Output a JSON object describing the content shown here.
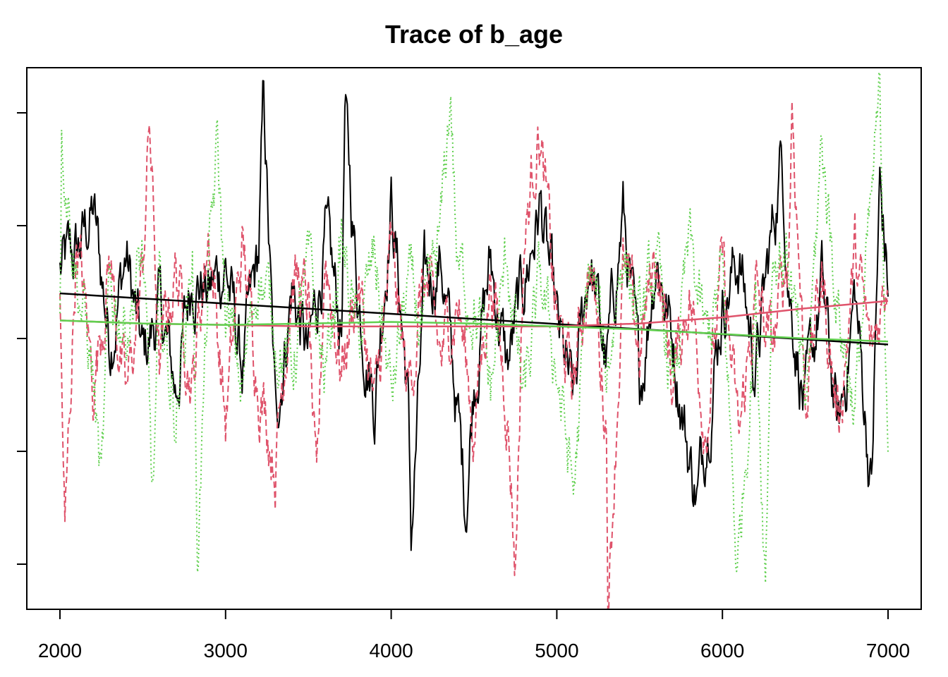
{
  "chart_data": {
    "type": "line",
    "title": "Trace of b_age",
    "xlabel": "",
    "ylabel": "",
    "xlim": [
      2000,
      7000
    ],
    "ylim": [
      -1.8,
      1.8
    ],
    "x_ticks": [
      "2000",
      "3000",
      "4000",
      "5000",
      "6000",
      "7000"
    ],
    "y_ticks": [
      -1.5,
      -0.75,
      0,
      0.75,
      1.5
    ],
    "y_tick_labels_shown": false,
    "grid": false,
    "legend": "none",
    "series": [
      {
        "color": "#000000",
        "linestyle": "solid",
        "x": [
          2000,
          2100,
          2200,
          2300,
          2400,
          2500,
          2600,
          2700,
          2800,
          2900,
          3000,
          3100,
          3200,
          3230,
          3300,
          3400,
          3500,
          3600,
          3700,
          3720,
          3800,
          3900,
          4000,
          4100,
          4120,
          4200,
          4300,
          4400,
          4450,
          4500,
          4600,
          4700,
          4800,
          4900,
          5000,
          5100,
          5200,
          5300,
          5400,
          5500,
          5600,
          5700,
          5800,
          5850,
          5900,
          6000,
          6100,
          6200,
          6300,
          6360,
          6400,
          6500,
          6600,
          6700,
          6800,
          6900,
          6950,
          7000
        ],
        "values": [
          0.45,
          0.55,
          0.85,
          0.0,
          0.55,
          -0.15,
          0.2,
          -0.35,
          0.45,
          0.3,
          0.5,
          -0.2,
          0.55,
          1.6,
          -0.55,
          0.35,
          -0.15,
          0.65,
          0.05,
          1.5,
          0.3,
          -0.4,
          0.95,
          -0.35,
          -1.35,
          0.3,
          0.55,
          -0.5,
          -1.1,
          -0.25,
          0.5,
          -0.2,
          0.35,
          0.9,
          0.05,
          -0.45,
          0.55,
          -0.2,
          0.85,
          -0.35,
          0.6,
          0.0,
          -0.8,
          -1.05,
          -0.6,
          0.25,
          0.55,
          -0.2,
          0.7,
          1.25,
          0.4,
          -0.5,
          0.35,
          -0.65,
          0.3,
          -1.0,
          1.0,
          0.35
        ]
      },
      {
        "color": "#df536b",
        "linestyle": "dashed",
        "x": [
          2000,
          2030,
          2100,
          2200,
          2300,
          2400,
          2500,
          2540,
          2600,
          2700,
          2800,
          2900,
          3000,
          3100,
          3200,
          3300,
          3400,
          3500,
          3550,
          3600,
          3700,
          3800,
          3900,
          4000,
          4100,
          4200,
          4300,
          4400,
          4500,
          4600,
          4700,
          4750,
          4800,
          4890,
          5000,
          5100,
          5200,
          5300,
          5310,
          5400,
          5500,
          5600,
          5700,
          5800,
          5900,
          6000,
          6100,
          6200,
          6300,
          6400,
          6420,
          6500,
          6600,
          6700,
          6800,
          6900,
          7000
        ],
        "values": [
          0.2,
          -1.35,
          0.7,
          -0.3,
          0.55,
          -0.45,
          0.45,
          1.45,
          -0.2,
          0.5,
          -0.3,
          0.75,
          -0.55,
          0.6,
          -0.25,
          -0.8,
          0.45,
          0.2,
          -1.2,
          0.6,
          -0.2,
          0.4,
          -0.5,
          0.55,
          -0.35,
          0.4,
          -0.15,
          0.3,
          -0.6,
          0.45,
          -0.4,
          -1.5,
          0.6,
          1.45,
          0.1,
          -0.3,
          0.55,
          -0.55,
          -1.75,
          0.45,
          -0.1,
          0.6,
          -0.3,
          0.35,
          -0.55,
          0.45,
          -0.7,
          0.3,
          -0.1,
          0.6,
          1.6,
          -0.35,
          0.4,
          -0.55,
          0.55,
          -0.15,
          0.5
        ]
      },
      {
        "color": "#61d04f",
        "linestyle": "dotted",
        "x": [
          2000,
          2010,
          2100,
          2200,
          2250,
          2300,
          2400,
          2500,
          2560,
          2600,
          2700,
          2800,
          2830,
          2900,
          2950,
          3000,
          3100,
          3200,
          3300,
          3400,
          3500,
          3600,
          3700,
          3800,
          3900,
          4000,
          4100,
          4200,
          4300,
          4360,
          4400,
          4500,
          4600,
          4700,
          4800,
          4900,
          5000,
          5100,
          5200,
          5300,
          5400,
          5500,
          5600,
          5700,
          5800,
          5900,
          6000,
          6090,
          6200,
          6260,
          6300,
          6400,
          6500,
          6600,
          6700,
          6800,
          6900,
          6950,
          7000
        ],
        "values": [
          0.25,
          1.4,
          0.45,
          -0.25,
          -1.05,
          0.3,
          0.1,
          0.55,
          -1.1,
          0.2,
          -0.5,
          0.6,
          -1.4,
          0.45,
          1.25,
          0.2,
          -0.35,
          0.5,
          0.05,
          -0.2,
          0.45,
          -0.25,
          0.65,
          -0.05,
          0.55,
          -0.4,
          0.35,
          0.0,
          0.7,
          1.65,
          0.45,
          0.25,
          -0.35,
          0.55,
          -0.45,
          0.35,
          -0.2,
          -1.05,
          0.5,
          -0.25,
          0.65,
          0.05,
          0.45,
          -0.35,
          0.6,
          -0.05,
          0.4,
          -1.55,
          0.25,
          -1.55,
          0.6,
          0.55,
          -0.55,
          1.3,
          0.2,
          -0.45,
          0.85,
          1.55,
          -0.5
        ]
      }
    ],
    "trend_lines": [
      {
        "color": "#000000",
        "x": [
          2000,
          7000
        ],
        "values": [
          0.3,
          -0.04
        ]
      },
      {
        "color": "#df536b",
        "x": [
          2000,
          2500,
          3000,
          3500,
          4000,
          4500,
          5000,
          5500,
          6000,
          6500,
          7000
        ],
        "values": [
          0.12,
          0.1,
          0.09,
          0.08,
          0.08,
          0.08,
          0.08,
          0.1,
          0.14,
          0.2,
          0.25
        ]
      },
      {
        "color": "#61d04f",
        "x": [
          2000,
          2500,
          3000,
          3500,
          4000,
          4500,
          5000,
          5500,
          6000,
          6500,
          7000
        ],
        "values": [
          0.12,
          0.1,
          0.09,
          0.1,
          0.11,
          0.1,
          0.08,
          0.06,
          0.03,
          0.0,
          -0.02
        ]
      }
    ]
  }
}
